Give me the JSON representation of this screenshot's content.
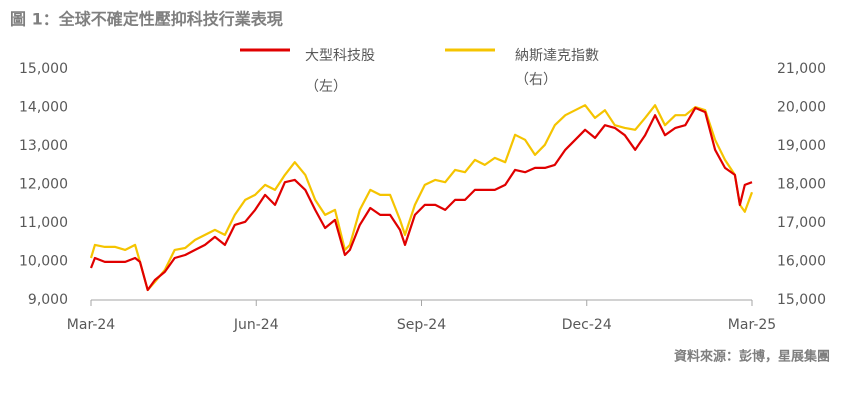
{
  "chart_data": {
    "type": "line",
    "title": "圖 1：全球不確定性壓抑科技行業表現",
    "source": "資料來源：彭博，星展集團",
    "x": [
      0,
      0.07,
      0.25,
      0.44,
      0.62,
      0.8,
      0.89,
      1.03,
      1.16,
      1.34,
      1.52,
      1.71,
      1.89,
      2.07,
      2.25,
      2.43,
      2.61,
      2.8,
      2.98,
      3.16,
      3.34,
      3.52,
      3.7,
      3.89,
      4.07,
      4.25,
      4.43,
      4.61,
      4.7,
      4.88,
      5.07,
      5.25,
      5.43,
      5.61,
      5.7,
      5.88,
      6.06,
      6.25,
      6.43,
      6.61,
      6.79,
      6.97,
      7.15,
      7.33,
      7.52,
      7.7,
      7.88,
      8.06,
      8.24,
      8.42,
      8.61,
      8.79,
      8.97,
      9.15,
      9.33,
      9.51,
      9.69,
      9.88,
      10.06,
      10.24,
      10.42,
      10.61,
      10.79,
      10.97,
      11.15,
      11.33,
      11.51,
      11.69,
      11.78,
      11.87,
      12
    ],
    "xlim": [
      0,
      12
    ],
    "xticks": [
      {
        "value": 0,
        "label": "Mar-24"
      },
      {
        "value": 3,
        "label": "Jun-24"
      },
      {
        "value": 6,
        "label": "Sep-24"
      },
      {
        "value": 9,
        "label": "Dec-24"
      },
      {
        "value": 12,
        "label": "Mar-25"
      }
    ],
    "ylim": [
      9000,
      15000
    ],
    "yticks": [
      {
        "value": 9000,
        "label": "9,000"
      },
      {
        "value": 10000,
        "label": "10,000"
      },
      {
        "value": 11000,
        "label": "11,000"
      },
      {
        "value": 12000,
        "label": "12,000"
      },
      {
        "value": 13000,
        "label": "13,000"
      },
      {
        "value": 14000,
        "label": "14,000"
      },
      {
        "value": 15000,
        "label": "15,000"
      }
    ],
    "y2lim": [
      15000,
      21000
    ],
    "y2ticks": [
      {
        "value": 15000,
        "label": "15,000"
      },
      {
        "value": 16000,
        "label": "16,000"
      },
      {
        "value": 17000,
        "label": "17,000"
      },
      {
        "value": 18000,
        "label": "18,000"
      },
      {
        "value": 19000,
        "label": "19,000"
      },
      {
        "value": 20000,
        "label": "20,000"
      },
      {
        "value": 21000,
        "label": "21,000"
      }
    ],
    "series": [
      {
        "name": "大型科技股",
        "note": "（左）",
        "color": "#e00000",
        "axis": "y",
        "values": [
          9830,
          10090,
          9990,
          9990,
          9990,
          10090,
          9990,
          9260,
          9520,
          9730,
          10090,
          10170,
          10300,
          10430,
          10640,
          10430,
          10950,
          11030,
          11340,
          11730,
          11470,
          12060,
          12120,
          11860,
          11340,
          10870,
          11080,
          10170,
          10300,
          10950,
          11390,
          11210,
          11210,
          10820,
          10430,
          11210,
          11470,
          11470,
          11340,
          11600,
          11600,
          11860,
          11860,
          11860,
          11990,
          12380,
          12320,
          12430,
          12430,
          12510,
          12900,
          13160,
          13420,
          13210,
          13540,
          13470,
          13280,
          12900,
          13280,
          13800,
          13280,
          13470,
          13540,
          13990,
          13880,
          12900,
          12430,
          12250,
          11470,
          11990,
          12060
        ]
      },
      {
        "name": "納斯達克指數",
        "note": "（右）",
        "color": "#f5c400",
        "axis": "y2",
        "values": [
          16090,
          16430,
          16380,
          16380,
          16300,
          16430,
          15990,
          15260,
          15470,
          15780,
          16300,
          16350,
          16560,
          16690,
          16820,
          16690,
          17210,
          17600,
          17730,
          17990,
          17860,
          18250,
          18580,
          18250,
          17600,
          17210,
          17340,
          16300,
          16430,
          17340,
          17860,
          17730,
          17730,
          17080,
          16690,
          17470,
          17990,
          18120,
          18060,
          18380,
          18320,
          18640,
          18510,
          18690,
          18580,
          19290,
          19160,
          18770,
          19030,
          19540,
          19800,
          19930,
          20060,
          19730,
          19930,
          19540,
          19470,
          19420,
          19730,
          20060,
          19540,
          19800,
          19800,
          20010,
          19930,
          19160,
          18640,
          18250,
          17470,
          17290,
          17800
        ]
      }
    ]
  }
}
